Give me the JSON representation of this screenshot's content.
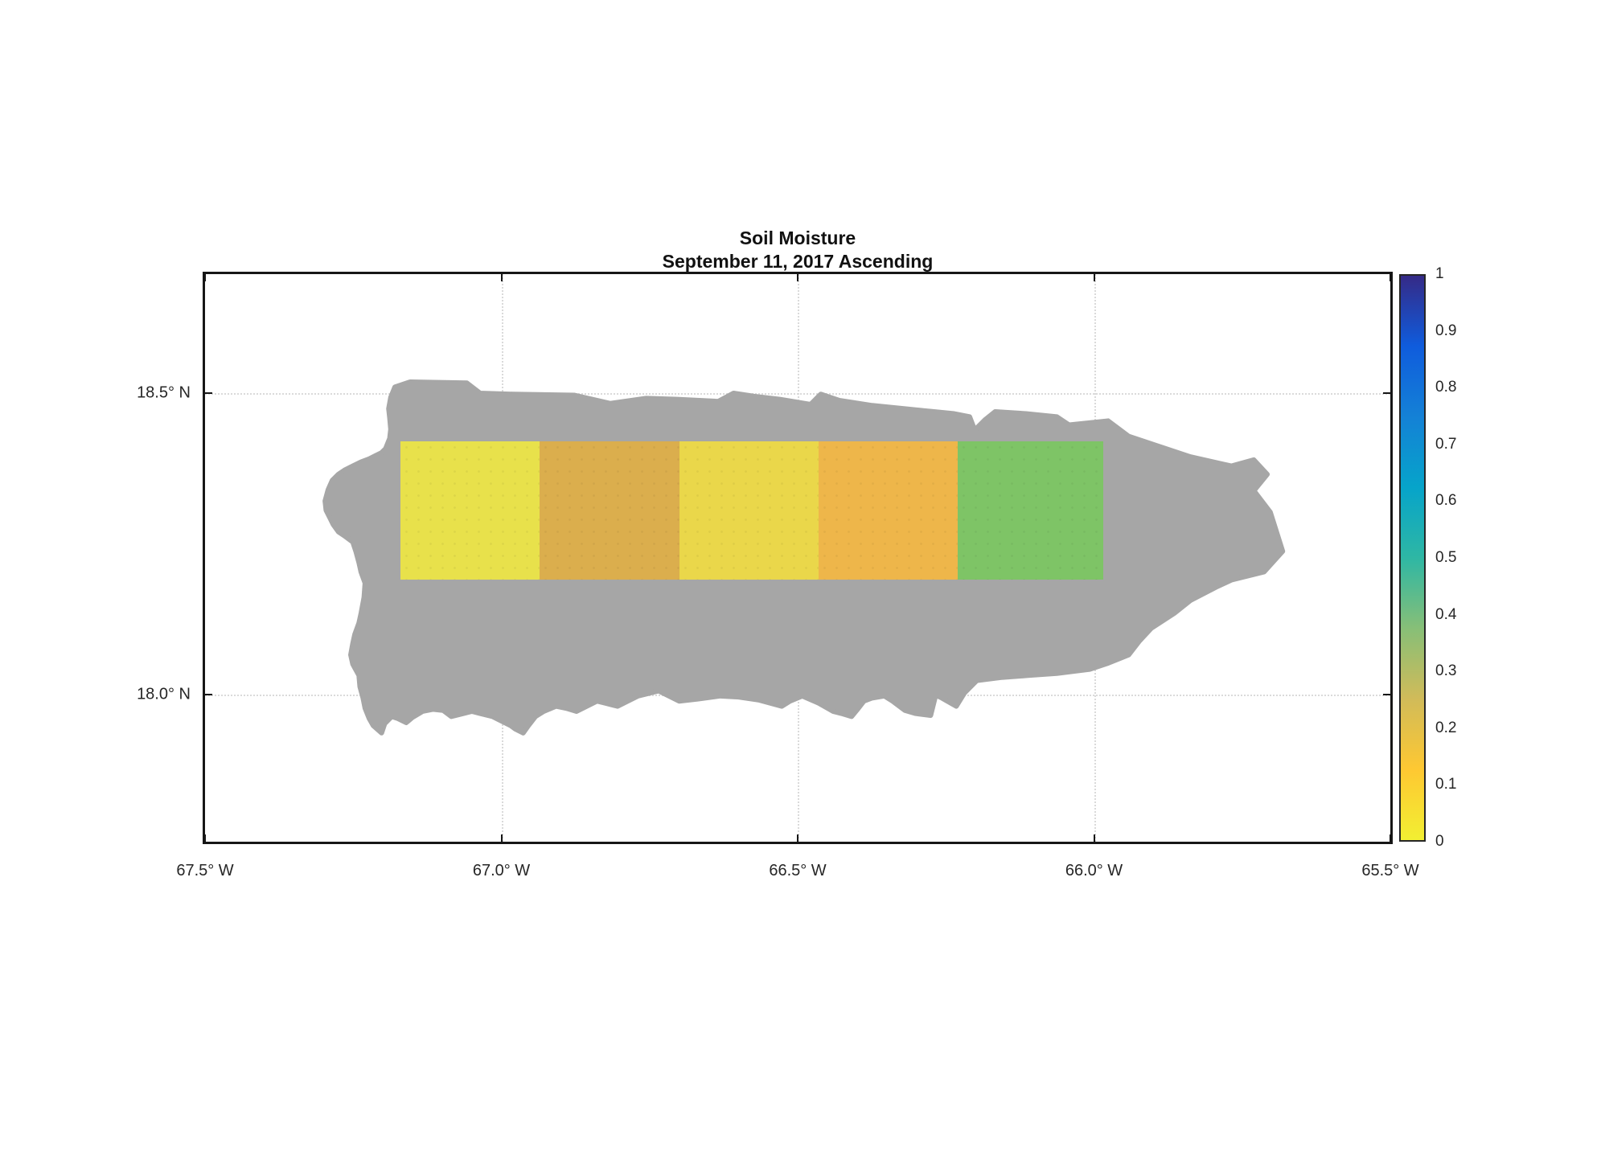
{
  "figure": {
    "background": "#ffffff",
    "land_color": "#a6a6a6",
    "grid_style": "dotted"
  },
  "chart_data": {
    "type": "heatmap",
    "title": "Soil Moisture",
    "subtitle": "September 11, 2017 Ascending",
    "x_axis": {
      "tick_labels": [
        "67.5° W",
        "67.0° W",
        "66.5° W",
        "66.0° W",
        "65.5° W"
      ],
      "tick_values_deg_west": [
        67.5,
        67.0,
        66.5,
        66.0,
        65.5
      ],
      "range_deg_west": [
        67.5,
        65.5
      ]
    },
    "y_axis": {
      "tick_labels": [
        "18.5° N",
        "18.0° N"
      ],
      "tick_values_deg_north": [
        18.5,
        18.0
      ],
      "range_deg_north": [
        17.755,
        18.698
      ]
    },
    "grid": "on-dotted",
    "basemap": {
      "name": "island-silhouette",
      "color": "#a6a6a6"
    },
    "colorbar": {
      "min": 0,
      "max": 1,
      "tick_labels": [
        "1",
        "0.9",
        "0.8",
        "0.7",
        "0.6",
        "0.5",
        "0.4",
        "0.3",
        "0.2",
        "0.1",
        "0"
      ],
      "colormap": "parula-reversed",
      "gradient_stops_top_to_bottom": [
        "#352a87",
        "#0f5cdd",
        "#1481d6",
        "#06a4ca",
        "#2eb7a4",
        "#87bf77",
        "#d1bb59",
        "#fec832",
        "#f2ef32"
      ]
    },
    "cells": [
      {
        "west": 67.17,
        "east": 66.935,
        "north": 18.42,
        "south": 18.19,
        "value": 0.07,
        "color": "#e8e14b"
      },
      {
        "west": 66.935,
        "east": 66.7,
        "north": 18.42,
        "south": 18.19,
        "value": 0.22,
        "color": "#dbae4d"
      },
      {
        "west": 66.7,
        "east": 66.465,
        "north": 18.42,
        "south": 18.19,
        "value": 0.08,
        "color": "#ead74a"
      },
      {
        "west": 66.465,
        "east": 66.23,
        "north": 18.42,
        "south": 18.19,
        "value": 0.15,
        "color": "#eeb64a"
      },
      {
        "west": 66.23,
        "east": 65.985,
        "north": 18.42,
        "south": 18.19,
        "value": 0.35,
        "color": "#7ec466"
      }
    ]
  }
}
